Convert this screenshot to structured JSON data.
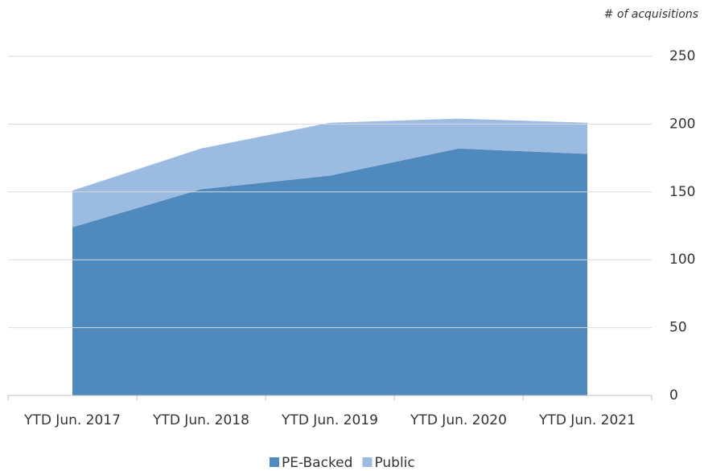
{
  "chart_data": {
    "type": "stacked_area",
    "y_axis_label": "# of acquisitions",
    "categories": [
      "YTD Jun. 2017",
      "YTD Jun. 2018",
      "YTD Jun. 2019",
      "YTD Jun. 2020",
      "YTD Jun. 2021"
    ],
    "series": [
      {
        "name": "PE-Backed",
        "color": "#4f89bd",
        "values": [
          124,
          152,
          162,
          182,
          178
        ]
      },
      {
        "name": "Public",
        "color": "#9bbbe0",
        "values": [
          27,
          30,
          39,
          22,
          23
        ]
      }
    ],
    "ylim": [
      0,
      250
    ],
    "yticks": [
      0,
      50,
      100,
      150,
      200,
      250
    ],
    "grid": true,
    "legend": "bottom"
  }
}
